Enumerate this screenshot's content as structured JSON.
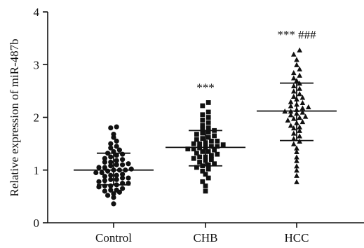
{
  "chart_data": {
    "type": "scatter",
    "title": "",
    "xlabel": "",
    "ylabel": "Relative expression of miR-487b",
    "ylim": [
      0,
      4
    ],
    "yticks": [
      "0",
      "1",
      "2",
      "3",
      "4"
    ],
    "grid": false,
    "categories": [
      "Control",
      "CHB",
      "HCC"
    ],
    "annotations": [
      "",
      "***",
      "*** ###"
    ],
    "series": [
      {
        "marker": "circle",
        "mean": 1.0,
        "sd_upper": 1.32,
        "sd_lower": 0.72,
        "values": [
          0.36,
          0.48,
          0.52,
          0.55,
          0.58,
          0.6,
          0.62,
          0.62,
          0.65,
          0.68,
          0.7,
          0.7,
          0.72,
          0.75,
          0.75,
          0.78,
          0.8,
          0.82,
          0.82,
          0.85,
          0.85,
          0.88,
          0.9,
          0.9,
          0.92,
          0.95,
          0.95,
          0.98,
          1.0,
          1.0,
          1.0,
          1.02,
          1.05,
          1.05,
          1.08,
          1.1,
          1.1,
          1.12,
          1.15,
          1.15,
          1.18,
          1.2,
          1.22,
          1.25,
          1.28,
          1.3,
          1.32,
          1.35,
          1.38,
          1.42,
          1.45,
          1.5,
          1.55,
          1.62,
          1.68,
          1.8,
          1.82
        ]
      },
      {
        "marker": "square",
        "mean": 1.43,
        "sd_upper": 1.75,
        "sd_lower": 1.08,
        "values": [
          0.6,
          0.7,
          0.78,
          0.85,
          0.92,
          0.98,
          1.02,
          1.05,
          1.08,
          1.1,
          1.12,
          1.15,
          1.18,
          1.2,
          1.22,
          1.25,
          1.25,
          1.28,
          1.3,
          1.32,
          1.35,
          1.35,
          1.38,
          1.4,
          1.4,
          1.42,
          1.43,
          1.45,
          1.45,
          1.48,
          1.5,
          1.5,
          1.52,
          1.55,
          1.55,
          1.58,
          1.6,
          1.62,
          1.65,
          1.68,
          1.7,
          1.72,
          1.75,
          1.78,
          1.8,
          1.85,
          1.9,
          1.95,
          2.0,
          2.05,
          2.1,
          2.22,
          2.28
        ]
      },
      {
        "marker": "triangle",
        "mean": 2.12,
        "sd_upper": 2.65,
        "sd_lower": 1.56,
        "values": [
          0.78,
          0.9,
          1.0,
          1.08,
          1.18,
          1.25,
          1.35,
          1.42,
          1.5,
          1.55,
          1.6,
          1.65,
          1.7,
          1.75,
          1.8,
          1.82,
          1.85,
          1.9,
          1.92,
          1.95,
          1.98,
          2.0,
          2.02,
          2.05,
          2.08,
          2.1,
          2.12,
          2.12,
          2.15,
          2.18,
          2.2,
          2.22,
          2.25,
          2.28,
          2.3,
          2.35,
          2.38,
          2.4,
          2.45,
          2.5,
          2.55,
          2.6,
          2.65,
          2.7,
          2.75,
          2.8,
          2.85,
          2.92,
          3.0,
          3.1,
          3.2,
          3.28
        ]
      }
    ]
  }
}
